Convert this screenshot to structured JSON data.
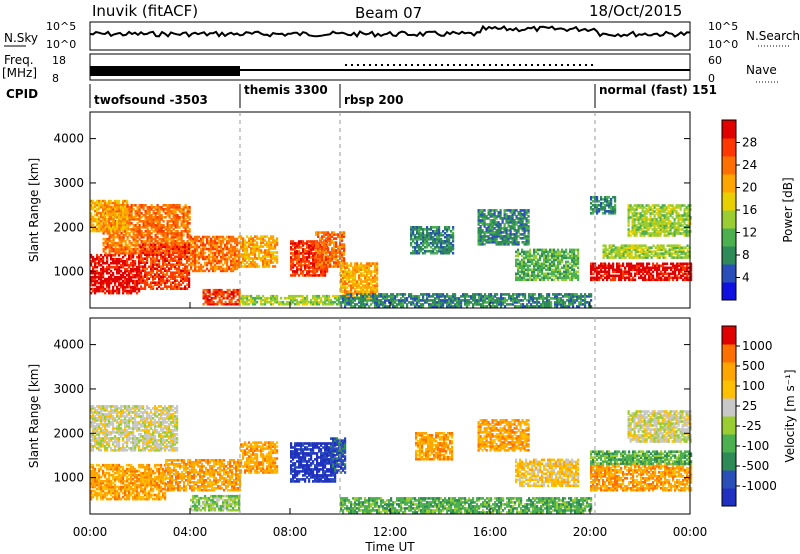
{
  "header": {
    "station": "Inuvik (fitACF)",
    "beam": "Beam 07",
    "date": "18/Oct/2015"
  },
  "status_panel": {
    "nsky_label": "N.Sky",
    "nsky_ticks": [
      "10^5",
      "10^0"
    ],
    "nsearch_label": "N.Search",
    "nsearch_ticks": [
      "10^5",
      "10^0"
    ],
    "freq_label": "Freq.",
    "freq_unit": "[MHz]",
    "freq_ticks": [
      "18",
      "8"
    ],
    "nave_label": "Nave",
    "nave_ticks": [
      "60",
      "0"
    ],
    "cpid_label": "CPID",
    "cpid_segments": [
      {
        "label": "twofsound -3503",
        "start_h": 0,
        "end_h": 6
      },
      {
        "label": "themis 3300",
        "start_h": 6,
        "end_h": 10
      },
      {
        "label": "rbsp 200",
        "start_h": 10,
        "end_h": 20.2
      },
      {
        "label": "normal (fast) 151",
        "start_h": 20.2,
        "end_h": 24
      }
    ]
  },
  "chart_data": [
    {
      "type": "heatmap",
      "title": "",
      "xlabel": "",
      "ylabel": "Slant Range [km]",
      "xlim": [
        0,
        24
      ],
      "ylim": [
        180,
        4600
      ],
      "y_ticks": [
        1000,
        2000,
        3000,
        4000
      ],
      "colorbar": {
        "label": "Power [dB]",
        "ticks": [
          "4",
          "8",
          "12",
          "16",
          "20",
          "24",
          "28"
        ],
        "colors": [
          "#1010e0",
          "#2a4fb8",
          "#2e8b57",
          "#4caf50",
          "#9acd32",
          "#e8d000",
          "#ffa500",
          "#ff7000",
          "#ff3800",
          "#e00000"
        ]
      },
      "regions": [
        {
          "t0": 0.0,
          "t1": 2.0,
          "r0": 500,
          "r1": 1400,
          "level": 9
        },
        {
          "t0": 0.5,
          "t1": 4.0,
          "r0": 1400,
          "r1": 2500,
          "level": 7
        },
        {
          "t0": 0.0,
          "t1": 1.5,
          "r0": 1900,
          "r1": 2600,
          "level": 6
        },
        {
          "t0": 2.0,
          "t1": 4.0,
          "r0": 600,
          "r1": 1600,
          "level": 8
        },
        {
          "t0": 4.0,
          "t1": 6.0,
          "r0": 1000,
          "r1": 1800,
          "level": 7
        },
        {
          "t0": 4.5,
          "t1": 6.0,
          "r0": 250,
          "r1": 600,
          "level": 8
        },
        {
          "t0": 6.0,
          "t1": 7.5,
          "r0": 1100,
          "r1": 1800,
          "level": 6
        },
        {
          "t0": 8.0,
          "t1": 9.5,
          "r0": 900,
          "r1": 1700,
          "level": 8
        },
        {
          "t0": 9.0,
          "t1": 10.2,
          "r0": 1100,
          "r1": 1900,
          "level": 7
        },
        {
          "t0": 6.0,
          "t1": 10.0,
          "r0": 250,
          "r1": 450,
          "level": 4
        },
        {
          "t0": 10.0,
          "t1": 11.5,
          "r0": 400,
          "r1": 1200,
          "level": 6
        },
        {
          "t0": 10.0,
          "t1": 20.0,
          "r0": 200,
          "r1": 500,
          "level": 2
        },
        {
          "t0": 12.8,
          "t1": 14.5,
          "r0": 1400,
          "r1": 2000,
          "level": 2
        },
        {
          "t0": 15.5,
          "t1": 17.5,
          "r0": 1600,
          "r1": 2400,
          "level": 2
        },
        {
          "t0": 17.0,
          "t1": 19.5,
          "r0": 800,
          "r1": 1500,
          "level": 3
        },
        {
          "t0": 20.0,
          "t1": 24.0,
          "r0": 800,
          "r1": 1200,
          "level": 9
        },
        {
          "t0": 20.5,
          "t1": 24.0,
          "r0": 1300,
          "r1": 1600,
          "level": 4
        },
        {
          "t0": 21.5,
          "t1": 24.0,
          "r0": 1800,
          "r1": 2500,
          "level": 4
        },
        {
          "t0": 20.0,
          "t1": 21.0,
          "r0": 2300,
          "r1": 2700,
          "level": 2
        }
      ]
    },
    {
      "type": "heatmap",
      "title": "",
      "xlabel": "Time UT",
      "ylabel": "Slant Range [km]",
      "xlim": [
        0,
        24
      ],
      "ylim": [
        180,
        4600
      ],
      "x_ticks": [
        "00:00",
        "04:00",
        "08:00",
        "12:00",
        "16:00",
        "20:00",
        "00:00"
      ],
      "y_ticks": [
        1000,
        2000,
        3000,
        4000
      ],
      "colorbar": {
        "label": "Velocity [m s⁻¹]",
        "ticks": [
          "1000",
          "500",
          "100",
          "25",
          "-25",
          "-100",
          "-500",
          "-1000"
        ],
        "colors": [
          "#2030c0",
          "#2a4fb8",
          "#2e8b57",
          "#4caf50",
          "#9acd32",
          "#c8c8c8",
          "#ffc000",
          "#ffa500",
          "#ff7000",
          "#e00000"
        ]
      },
      "regions": [
        {
          "t0": 0.0,
          "t1": 3.0,
          "r0": 500,
          "r1": 1300,
          "level": 7
        },
        {
          "t0": 0.0,
          "t1": 3.5,
          "r0": 1600,
          "r1": 2600,
          "level": 5
        },
        {
          "t0": 3.0,
          "t1": 6.0,
          "r0": 700,
          "r1": 1400,
          "level": 7
        },
        {
          "t0": 4.0,
          "t1": 6.0,
          "r0": 250,
          "r1": 600,
          "level": 4
        },
        {
          "t0": 6.0,
          "t1": 7.5,
          "r0": 1100,
          "r1": 1800,
          "level": 7
        },
        {
          "t0": 8.0,
          "t1": 9.8,
          "r0": 900,
          "r1": 1800,
          "level": 0
        },
        {
          "t0": 9.6,
          "t1": 10.2,
          "r0": 1100,
          "r1": 1900,
          "level": 1
        },
        {
          "t0": 10.0,
          "t1": 20.0,
          "r0": 200,
          "r1": 550,
          "level": 3
        },
        {
          "t0": 13.0,
          "t1": 14.5,
          "r0": 1400,
          "r1": 2000,
          "level": 7
        },
        {
          "t0": 15.5,
          "t1": 17.5,
          "r0": 1600,
          "r1": 2300,
          "level": 7
        },
        {
          "t0": 17.0,
          "t1": 19.5,
          "r0": 800,
          "r1": 1400,
          "level": 6
        },
        {
          "t0": 20.0,
          "t1": 24.0,
          "r0": 700,
          "r1": 1300,
          "level": 7
        },
        {
          "t0": 20.0,
          "t1": 24.0,
          "r0": 1300,
          "r1": 1600,
          "level": 3
        },
        {
          "t0": 21.5,
          "t1": 24.0,
          "r0": 1800,
          "r1": 2500,
          "level": 5
        }
      ]
    }
  ]
}
